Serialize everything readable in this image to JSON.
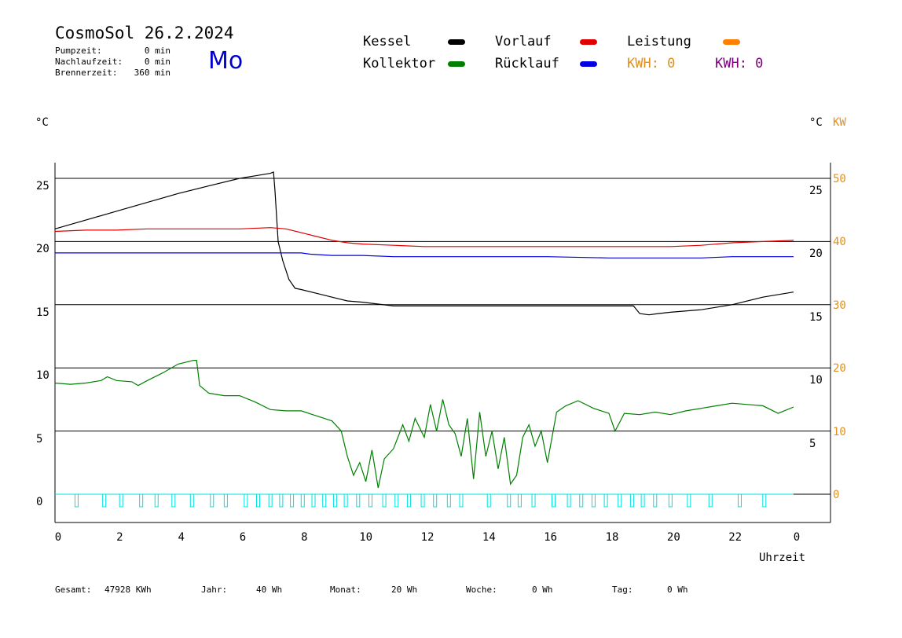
{
  "header": {
    "title": "CosmoSol 26.2.2024",
    "weekday": "Mo",
    "info": [
      {
        "label": "Pumpzeit:",
        "value": "0 min"
      },
      {
        "label": "Nachlaufzeit:",
        "value": "0 min"
      },
      {
        "label": "Brennerzeit:",
        "value": "360 min"
      }
    ]
  },
  "legend": {
    "kessel": "Kessel",
    "kollektor": "Kollektor",
    "vorlauf": "Vorlauf",
    "ruecklauf": "Rücklauf",
    "leistung": "Leistung",
    "kwh1": "KWH: 0",
    "kwh2": "KWH: 0"
  },
  "colors": {
    "kessel": "#000000",
    "kollektor": "#008000",
    "vorlauf": "#e00000",
    "ruecklauf": "#0000e0",
    "leistung": "#ff8000",
    "kwh2": "#800080",
    "pump": "#00e0e0",
    "orange_axis": "#e09020"
  },
  "axes": {
    "left_unit": "°C",
    "right_unit": "°C",
    "right_unit2": "KW",
    "xlabel": "Uhrzeit"
  },
  "footer": [
    {
      "label": "Gesamt:",
      "value": "47928 KWh"
    },
    {
      "label": "Jahr:",
      "value": "40 Wh"
    },
    {
      "label": "Monat:",
      "value": "20 Wh"
    },
    {
      "label": "Woche:",
      "value": "0 Wh"
    },
    {
      "label": "Tag:",
      "value": "0 Wh"
    }
  ],
  "chart_data": {
    "type": "line",
    "x_ticks": [
      "0",
      "2",
      "4",
      "6",
      "8",
      "10",
      "12",
      "14",
      "16",
      "18",
      "20",
      "22",
      "0"
    ],
    "xlim": [
      0,
      24
    ],
    "ylim": [
      -2.5,
      26.5
    ],
    "grid_y": [
      0,
      5,
      10,
      15,
      20,
      25
    ],
    "y_ticks_left": [
      "0",
      "5",
      "10",
      "15",
      "20",
      "25"
    ],
    "y_ticks_right_temp": [
      "5",
      "10",
      "15",
      "20",
      "25"
    ],
    "y_ticks_right_kw": [
      "0",
      "10",
      "20",
      "30",
      "40",
      "50"
    ],
    "series": [
      {
        "name": "Kessel",
        "color": "#000000",
        "x": [
          0,
          1,
          2,
          3,
          4,
          5,
          6,
          6.5,
          7,
          7.1,
          7.15,
          7.25,
          7.4,
          7.6,
          7.8,
          8,
          8.5,
          9,
          9.5,
          10,
          11,
          12,
          13,
          14,
          15,
          16,
          17,
          18,
          18.8,
          19,
          19.3,
          19.6,
          20,
          21,
          22,
          23,
          24
        ],
        "values": [
          21.0,
          21.7,
          22.4,
          23.1,
          23.8,
          24.4,
          25.0,
          25.2,
          25.4,
          25.5,
          24.0,
          20.0,
          18.5,
          17.0,
          16.3,
          16.2,
          15.9,
          15.6,
          15.3,
          15.2,
          14.9,
          14.9,
          14.9,
          14.9,
          14.9,
          14.9,
          14.9,
          14.9,
          14.9,
          14.3,
          14.2,
          14.3,
          14.4,
          14.6,
          15.0,
          15.6,
          16.0
        ]
      },
      {
        "name": "Vorlauf",
        "color": "#e00000",
        "x": [
          0,
          1,
          2,
          3,
          4,
          5,
          6,
          7,
          7.5,
          8,
          8.5,
          9,
          9.5,
          10,
          11,
          12,
          14,
          16,
          18,
          20,
          21,
          22,
          23,
          24
        ],
        "values": [
          20.8,
          20.9,
          20.9,
          21.0,
          21.0,
          21.0,
          21.0,
          21.1,
          21.0,
          20.7,
          20.4,
          20.1,
          19.9,
          19.8,
          19.7,
          19.6,
          19.6,
          19.6,
          19.6,
          19.6,
          19.7,
          19.9,
          20.0,
          20.1
        ]
      },
      {
        "name": "Rücklauf",
        "color": "#0000e0",
        "x": [
          0,
          2,
          4,
          6,
          7,
          8,
          8.3,
          9,
          10,
          11,
          12,
          14,
          16,
          18,
          19,
          20,
          21,
          22,
          23,
          24
        ],
        "values": [
          19.1,
          19.1,
          19.1,
          19.1,
          19.1,
          19.1,
          19.0,
          18.9,
          18.9,
          18.8,
          18.8,
          18.8,
          18.8,
          18.7,
          18.7,
          18.7,
          18.7,
          18.8,
          18.8,
          18.8
        ]
      },
      {
        "name": "Kollektor",
        "color": "#008000",
        "x": [
          0,
          0.5,
          1,
          1.5,
          1.7,
          2,
          2.5,
          2.7,
          3,
          3.5,
          4,
          4.5,
          4.6,
          4.7,
          5,
          5.5,
          6,
          6.5,
          7,
          7.5,
          8,
          8.5,
          9,
          9.3,
          9.5,
          9.7,
          9.9,
          10.1,
          10.3,
          10.5,
          10.7,
          11,
          11.3,
          11.5,
          11.7,
          12,
          12.2,
          12.4,
          12.6,
          12.8,
          13,
          13.2,
          13.4,
          13.6,
          13.8,
          14,
          14.2,
          14.4,
          14.6,
          14.8,
          15,
          15.2,
          15.4,
          15.6,
          15.8,
          16,
          16.3,
          16.6,
          17,
          17.5,
          18,
          18.2,
          18.5,
          19,
          19.5,
          20,
          20.5,
          21,
          21.5,
          22,
          22.5,
          23,
          23.5,
          24
        ],
        "values": [
          8.8,
          8.7,
          8.8,
          9.0,
          9.3,
          9.0,
          8.9,
          8.6,
          9.0,
          9.6,
          10.3,
          10.6,
          10.6,
          8.6,
          8.0,
          7.8,
          7.8,
          7.3,
          6.7,
          6.6,
          6.6,
          6.2,
          5.8,
          5.0,
          3.0,
          1.5,
          2.5,
          1.0,
          3.5,
          0.5,
          2.8,
          3.6,
          5.5,
          4.2,
          6.0,
          4.5,
          7.1,
          5.0,
          7.5,
          5.5,
          4.8,
          3.0,
          6.0,
          1.2,
          6.5,
          3.0,
          5.0,
          2.0,
          4.5,
          0.8,
          1.5,
          4.5,
          5.5,
          3.8,
          5.0,
          2.5,
          6.5,
          7.0,
          7.4,
          6.8,
          6.4,
          5.0,
          6.4,
          6.3,
          6.5,
          6.3,
          6.6,
          6.8,
          7.0,
          7.2,
          7.1,
          7.0,
          6.4,
          6.9
        ]
      }
    ],
    "pump_pulses_x": [
      0.7,
      1.6,
      2.15,
      2.8,
      3.3,
      3.85,
      4.45,
      5.1,
      5.55,
      6.2,
      6.6,
      7.0,
      7.35,
      7.7,
      8.05,
      8.4,
      8.75,
      9.1,
      9.45,
      9.85,
      10.25,
      10.7,
      11.1,
      11.5,
      11.95,
      12.35,
      12.8,
      13.2,
      14.1,
      14.75,
      15.1,
      15.55,
      16.2,
      16.7,
      17.1,
      17.5,
      17.9,
      18.35,
      18.75,
      19.1,
      19.5,
      20.0,
      20.6,
      21.3,
      22.25,
      23.05
    ]
  }
}
